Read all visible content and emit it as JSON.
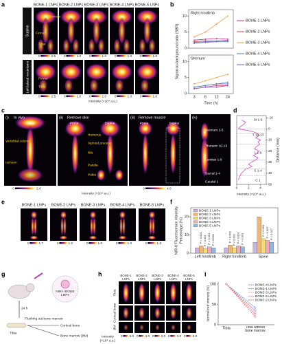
{
  "a": {
    "label": "a",
    "columns": [
      "BONE-1 LNPs",
      "BONE-2 LNPs",
      "BONE-3 LNPs",
      "BONE-4 LNPs",
      "BONE-5 LNPs"
    ],
    "rows": [
      "Supine",
      "Left lateral recumbent"
    ],
    "annotations_supine": [
      "Sternum",
      "Femur",
      "Tibia"
    ],
    "annotations_lateral": [
      "Femur",
      "Tibia"
    ],
    "colorbars": [
      [
        {
          "min": "0",
          "max": "2.5"
        },
        {
          "min": "0",
          "max": "1.0"
        },
        {
          "min": "0",
          "max": "1.0"
        },
        {
          "min": "0",
          "max": "1.0"
        },
        {
          "min": "0",
          "max": "1.0"
        }
      ],
      [
        {
          "min": "0",
          "max": "2.5"
        },
        {
          "min": "0",
          "max": "1.0"
        },
        {
          "min": "0",
          "max": "1.0"
        },
        {
          "min": "0",
          "max": "1.0"
        },
        {
          "min": "0",
          "max": "1.0"
        }
      ]
    ],
    "intensity_label": "Intensity (×10⁴ a.u.)"
  },
  "b": {
    "label": "b",
    "type": "line",
    "ylabel": "Signal-to-background ratio (SBR)",
    "xlabel": "Time (h)",
    "categories": [
      "3",
      "6",
      "12",
      "24"
    ],
    "legend": [
      {
        "name": "BONE-1 LNPs",
        "color": "#c0398a"
      },
      {
        "name": "BONE-2 LNPs",
        "color": "#e0454f"
      },
      {
        "name": "BONE-3 LNPs",
        "color": "#f0a040"
      },
      {
        "name": "BONE-4 LNPs",
        "color": "#4a7fd0"
      },
      {
        "name": "BONE-5 LNPs",
        "color": "#8a5ac8"
      }
    ],
    "charts": [
      {
        "title": "Right hindlimb",
        "ylim": [
          0,
          12
        ],
        "yticks": [
          0,
          5,
          10
        ],
        "values": [
          [
            2.5,
            2.8,
            3,
            2.8
          ],
          [
            2,
            2.3,
            2.2,
            2.5
          ],
          [
            3.5,
            5,
            7.5,
            10
          ],
          [
            1.5,
            1.8,
            2,
            2
          ],
          [
            1.8,
            2,
            2.2,
            2.4
          ]
        ]
      },
      {
        "title": "Sternum",
        "ylim": [
          0,
          12
        ],
        "yticks": [
          0,
          5,
          10
        ],
        "values": [
          [
            2,
            2.5,
            3,
            3
          ],
          [
            1.5,
            2,
            2.5,
            2.5
          ],
          [
            3,
            4,
            5,
            6
          ],
          [
            2,
            2.5,
            3,
            3.5
          ],
          [
            1.5,
            2,
            2,
            2.5
          ]
        ]
      }
    ]
  },
  "c": {
    "label": "c",
    "panels": [
      {
        "tag": "(i)",
        "title": "In vivo",
        "views": [
          "Prone"
        ]
      },
      {
        "tag": "(ii)",
        "title": "Remove skin",
        "views": [
          "Prone",
          "Supine"
        ]
      },
      {
        "tag": "(iii)",
        "title": "Remove muscle",
        "views": [
          "Prone",
          "Supine"
        ]
      },
      {
        "tag": "(iv)"
      }
    ],
    "annotations": [
      "Vertebral column",
      "Ischium",
      "Humerus",
      "Xiphoid process",
      "Rib",
      "Patella",
      "Pubis"
    ],
    "spine_labels": [
      "Sternum 1-5",
      "Thoracic 10-13",
      "Lumbar 1-6",
      "Sacral 1-4",
      "Caudal 1"
    ],
    "colorbars": [
      {
        "min": "0",
        "max": "2.0"
      },
      {
        "min": "0",
        "max": "4.0"
      }
    ],
    "intensity_label": "Intensity (×10⁴ a.u.)"
  },
  "d": {
    "label": "d",
    "type": "line",
    "color": "#e040c0",
    "xlabel": "Intensity (×10⁴ a.u.)",
    "ylabel": "Distance (mm)",
    "y": [
      -8,
      -6,
      -4,
      -2,
      0,
      2,
      4,
      6,
      8,
      10,
      12,
      14,
      16,
      18,
      20,
      22,
      24,
      26,
      28,
      30,
      32,
      34,
      36,
      38,
      40,
      42,
      44,
      46
    ],
    "values": [
      0.8,
      1.5,
      1.2,
      0.6,
      0.3,
      2.5,
      3.5,
      3.8,
      3.2,
      4.0,
      3.6,
      3.9,
      3.3,
      3.0,
      3.8,
      3.5,
      2.8,
      3.6,
      3.2,
      2.5,
      2.0,
      2.6,
      1.5,
      1.2,
      0.8,
      0.6,
      0.4,
      0.3
    ],
    "xlim": [
      0,
      5
    ],
    "xticks": [
      0,
      2,
      4
    ],
    "ylim": [
      -12,
      50
    ],
    "yticks": [
      -10,
      0,
      10,
      20,
      30,
      40,
      50
    ],
    "segments": [
      "St 1-5",
      "T 10-13",
      "L 1-6",
      "S 1-4",
      "C 1"
    ]
  },
  "e": {
    "label": "e",
    "columns": [
      "BONE-1 LNPs",
      "BONE-2 LNPs",
      "BONE-3 LNPs",
      "BONE-4 LNPs",
      "BONE-5 LNPs"
    ],
    "colorbars": [
      {
        "min": "0",
        "max": "1.7"
      },
      {
        "min": "0",
        "max": "1.2"
      },
      {
        "min": "0",
        "max": "1.0"
      },
      {
        "min": "0",
        "max": "1.0"
      },
      {
        "min": "0",
        "max": "1.0"
      }
    ]
  },
  "f": {
    "label": "f",
    "type": "bar",
    "categories": [
      "Left hindlimb",
      "Right hindlimb",
      "Spine"
    ],
    "series": [
      {
        "name": "BONE-1 LNPs",
        "color": "#c9b3e0",
        "values": [
          3,
          3,
          6
        ]
      },
      {
        "name": "BONE-2 LNPs",
        "color": "#f3b56b",
        "values": [
          4,
          4.5,
          20
        ]
      },
      {
        "name": "BONE-3 LNPs",
        "color": "#f5dd6b",
        "values": [
          2.5,
          3,
          8
        ]
      },
      {
        "name": "BONE-4 LNPs",
        "color": "#f4a7b5",
        "values": [
          3.5,
          4,
          7
        ]
      },
      {
        "name": "BONE-5 LNPs",
        "color": "#8fb6e6",
        "values": [
          3,
          3.5,
          6
        ]
      }
    ],
    "ylim": [
      0,
      25
    ],
    "yticks": [
      0,
      10,
      20
    ],
    "ylabel": [
      "NIR-II Fluorescence intensity",
      "Percentage (%)"
    ],
    "annotations": [
      [
        "P < 0.001",
        "P < 0.001",
        "P < 0.001",
        "P < 0.001"
      ],
      [
        "P < 0.001",
        "P < 0.001",
        "P < 0.001",
        "P < 0.001"
      ],
      [
        "P < 0.001",
        "P = 0.007",
        "P = 0.017"
      ]
    ]
  },
  "g": {
    "label": "g",
    "texts": {
      "time": "24 h",
      "lnp": "NIR-II BONE LNPs",
      "tibia": "Tibia",
      "flush": "Flushing out bone marrow",
      "cortical": "Cortical bone",
      "bm": "Bone marrow (BM)"
    }
  },
  "h": {
    "label": "h",
    "columns": [
      "BONE-1 LNPs",
      "BONE-2 LNPs",
      "BONE-3 LNPs",
      "BONE-4 LNPs",
      "BONE-5 LNPs"
    ],
    "rows": [
      "Tibia",
      "Cortical bone",
      "BM"
    ],
    "colorbars": [
      {
        "min": "0",
        "max": "3.0"
      },
      {
        "min": "0",
        "max": "3.0"
      },
      {
        "min": "0",
        "max": "3.0"
      },
      {
        "min": "0",
        "max": "3.0"
      },
      {
        "min": "0",
        "max": "3.0"
      }
    ],
    "intensity_label": [
      "Intensity",
      "(×10⁴ a.u.)"
    ]
  },
  "i": {
    "label": "i",
    "type": "line",
    "categories": [
      "Tibia",
      "Tibia without bone marrow"
    ],
    "ylim": [
      0,
      105
    ],
    "yticks": [
      0,
      50,
      100
    ],
    "ylabel": "Normalized intensity (%)",
    "series": [
      {
        "name": "BONE-4 LNPs",
        "color": "#4a7fd0",
        "values": [
          100,
          42
        ]
      },
      {
        "name": "BONE-1 LNPs",
        "color": "#8a5ac8",
        "values": [
          100,
          35
        ]
      },
      {
        "name": "BONE-3 LNPs",
        "color": "#f0a040",
        "values": [
          100,
          30
        ]
      },
      {
        "name": "BONE-5 LNPs",
        "color": "#e070a0",
        "values": [
          100,
          26
        ]
      },
      {
        "name": "BONE-2 LNPs",
        "color": "#e0454f",
        "values": [
          100,
          20
        ]
      }
    ]
  }
}
